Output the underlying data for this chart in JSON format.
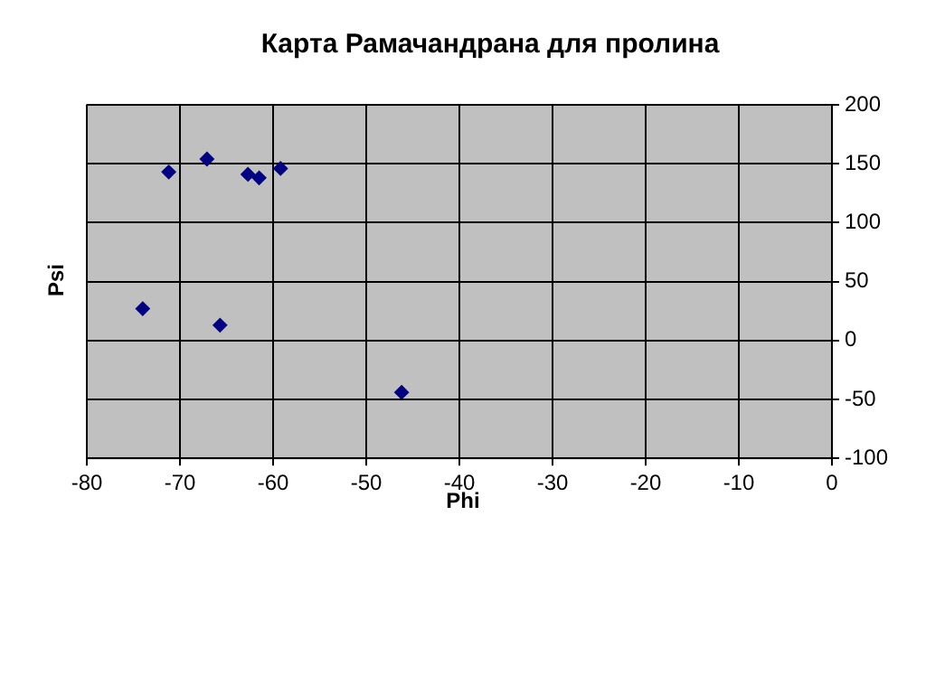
{
  "chart_data": {
    "type": "scatter",
    "title": "Карта Рамачандрана для пролина",
    "xlabel": "Phi",
    "ylabel": "Psi",
    "series": [
      {
        "color": "#000080",
        "x": [
          -71.2,
          -67.1,
          -62.7,
          -61.5,
          -59.2,
          -74,
          -65.7,
          -46.2
        ],
        "values": [
          143,
          154,
          141,
          138,
          146,
          27,
          13,
          -44
        ]
      }
    ],
    "xlim": [
      -80,
      0
    ],
    "xticks": [
      -80,
      -70,
      -60,
      -50,
      -40,
      -30,
      -20,
      -10,
      0
    ],
    "ylim": [
      -100,
      200
    ],
    "yticks": [
      -100,
      -50,
      0,
      50,
      100,
      150,
      200
    ],
    "grid": true,
    "marker": "diamond",
    "legend": false
  }
}
